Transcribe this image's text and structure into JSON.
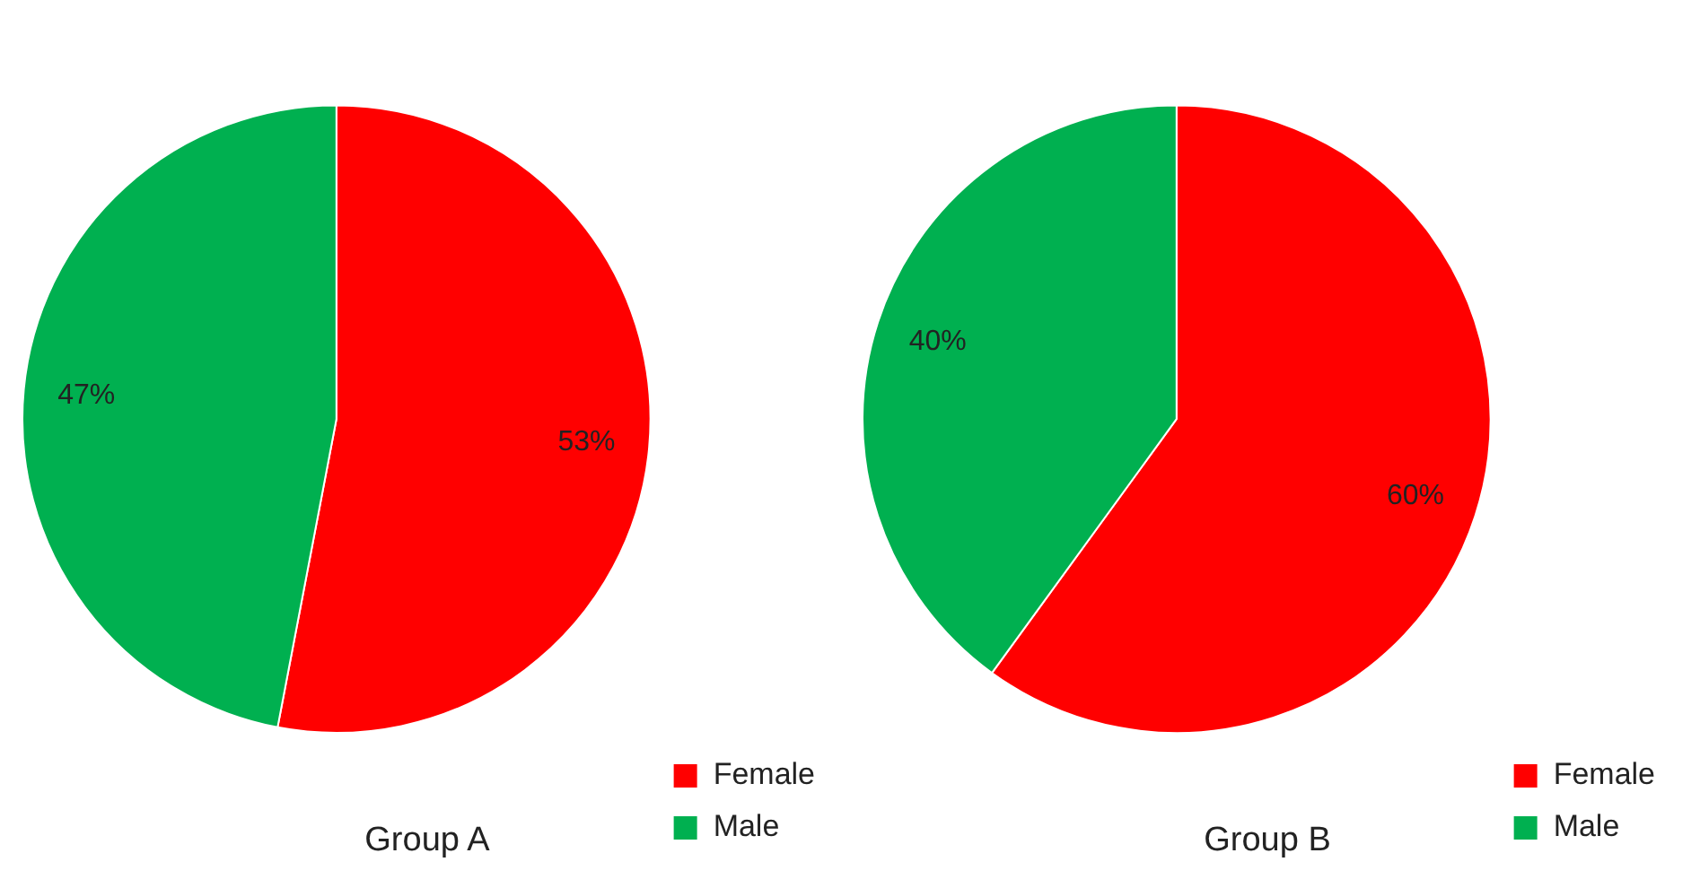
{
  "chart_data": [
    {
      "type": "pie",
      "title": "Group A",
      "categories": [
        "Female",
        "Male"
      ],
      "values": [
        53,
        47
      ],
      "colors": [
        "#ff0000",
        "#00b050"
      ],
      "value_labels": [
        "53%",
        "47%"
      ],
      "legend": "bottom right"
    },
    {
      "type": "pie",
      "title": "Group B",
      "categories": [
        "Female",
        "Male"
      ],
      "values": [
        60,
        40
      ],
      "colors": [
        "#ff0000",
        "#00b050"
      ],
      "value_labels": [
        "60%",
        "40%"
      ],
      "legend": "bottom right"
    }
  ]
}
